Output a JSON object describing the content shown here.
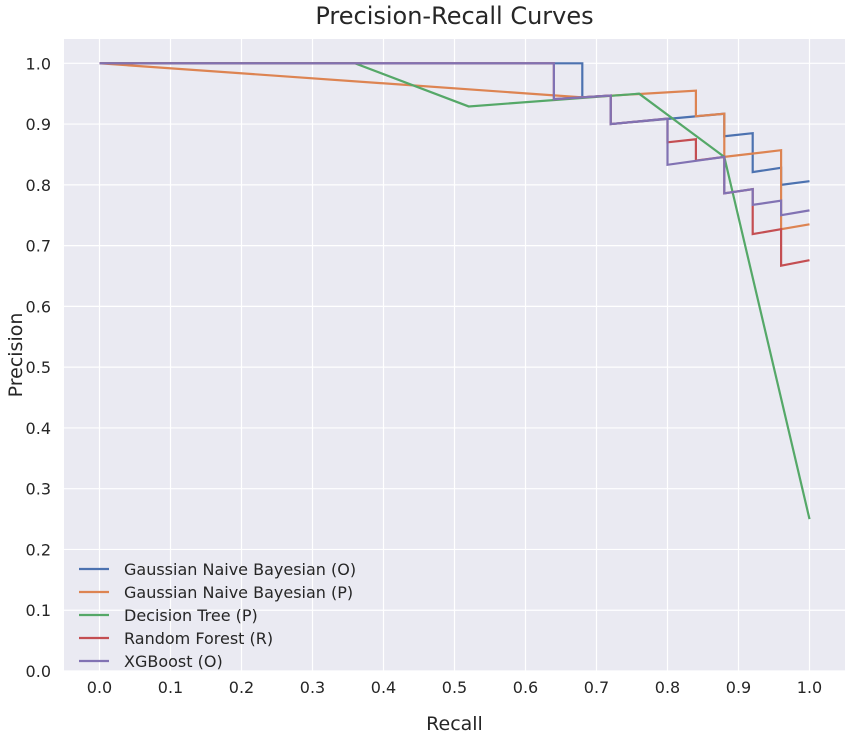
{
  "chart_data": {
    "type": "line",
    "title": "Precision-Recall Curves",
    "xlabel": "Recall",
    "ylabel": "Precision",
    "xlim": [
      -0.05,
      1.05
    ],
    "ylim": [
      0.0,
      1.04
    ],
    "xticks": [
      0.0,
      0.1,
      0.2,
      0.3,
      0.4,
      0.5,
      0.6,
      0.7,
      0.8,
      0.9,
      1.0
    ],
    "xtick_labels": [
      "0.0",
      "0.1",
      "0.2",
      "0.3",
      "0.4",
      "0.5",
      "0.6",
      "0.7",
      "0.8",
      "0.9",
      "1.0"
    ],
    "yticks": [
      0.0,
      0.1,
      0.2,
      0.3,
      0.4,
      0.5,
      0.6,
      0.7,
      0.8,
      0.9,
      1.0
    ],
    "ytick_labels": [
      "0.0",
      "0.1",
      "0.2",
      "0.3",
      "0.4",
      "0.5",
      "0.6",
      "0.7",
      "0.8",
      "0.9",
      "1.0"
    ],
    "grid": true,
    "legend_position": "lower-left",
    "series": [
      {
        "name": "Gaussian Naive Bayesian (O)",
        "color": "#4c72b0",
        "x": [
          0.0,
          0.68,
          0.68,
          0.72,
          0.72,
          0.88,
          0.88,
          0.92,
          0.92,
          0.96,
          0.96,
          1.0
        ],
        "y": [
          1.0,
          1.0,
          0.944,
          0.947,
          0.9,
          0.917,
          0.88,
          0.885,
          0.821,
          0.828,
          0.8,
          0.806
        ]
      },
      {
        "name": "Gaussian Naive Bayesian (P)",
        "color": "#dd8452",
        "x": [
          0.0,
          0.68,
          0.84,
          0.84,
          0.88,
          0.88,
          0.96,
          0.96,
          1.0
        ],
        "y": [
          1.0,
          0.944,
          0.955,
          0.913,
          0.917,
          0.846,
          0.857,
          0.727,
          0.735
        ]
      },
      {
        "name": "Decision Tree (P)",
        "color": "#55a868",
        "x": [
          0.0,
          0.36,
          0.52,
          0.76,
          0.88,
          1.0
        ],
        "y": [
          1.0,
          1.0,
          0.929,
          0.95,
          0.846,
          0.25
        ]
      },
      {
        "name": "Random Forest (R)",
        "color": "#c44e52",
        "x": [
          0.0,
          0.64,
          0.64,
          0.72,
          0.72,
          0.8,
          0.8,
          0.84,
          0.84,
          0.88,
          0.88,
          0.92,
          0.92,
          0.96,
          0.96,
          1.0
        ],
        "y": [
          1.0,
          1.0,
          0.941,
          0.947,
          0.9,
          0.909,
          0.87,
          0.875,
          0.84,
          0.846,
          0.786,
          0.793,
          0.719,
          0.727,
          0.667,
          0.676
        ]
      },
      {
        "name": "XGBoost (O)",
        "color": "#8172b3",
        "x": [
          0.0,
          0.64,
          0.64,
          0.72,
          0.72,
          0.8,
          0.8,
          0.88,
          0.88,
          0.92,
          0.92,
          0.96,
          0.96,
          1.0
        ],
        "y": [
          1.0,
          1.0,
          0.941,
          0.947,
          0.9,
          0.909,
          0.833,
          0.846,
          0.786,
          0.793,
          0.767,
          0.774,
          0.75,
          0.758
        ]
      }
    ]
  }
}
